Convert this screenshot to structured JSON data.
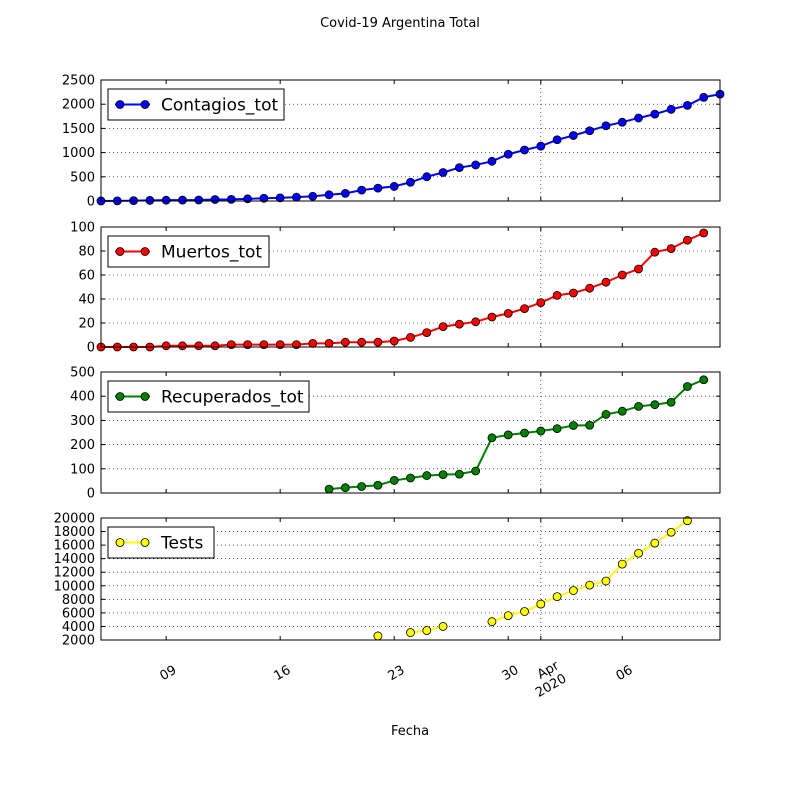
{
  "chart_data": {
    "type": "line",
    "title": "Covid-19 Argentina Total",
    "xlabel": "Fecha",
    "x_range": [
      "2020-03-05",
      "2020-04-12"
    ],
    "x_ticks": [
      {
        "date": "2020-03-09",
        "label": "09",
        "label2": ""
      },
      {
        "date": "2020-03-16",
        "label": "16",
        "label2": ""
      },
      {
        "date": "2020-03-23",
        "label": "23",
        "label2": ""
      },
      {
        "date": "2020-03-30",
        "label": "30",
        "label2": ""
      },
      {
        "date": "2020-04-01",
        "label": "Apr",
        "label2": "2020"
      },
      {
        "date": "2020-04-06",
        "label": "06",
        "label2": ""
      }
    ],
    "vgrid_dates": [
      "2020-04-01"
    ],
    "panels": [
      {
        "name": "Contagios_tot",
        "color": "#0000ff",
        "ylim": [
          0,
          2500
        ],
        "yticks": [
          0,
          500,
          1000,
          1500,
          2000,
          2500
        ],
        "start": "2020-03-05",
        "values": [
          1,
          2,
          8,
          12,
          17,
          19,
          21,
          31,
          34,
          45,
          56,
          65,
          79,
          97,
          128,
          158,
          225,
          266,
          301,
          387,
          502,
          589,
          690,
          745,
          820,
          966,
          1054,
          1133,
          1265,
          1353,
          1451,
          1554,
          1628,
          1715,
          1795,
          1894,
          1975,
          2142,
          2208
        ]
      },
      {
        "name": "Muertos_tot",
        "color": "#ff0000",
        "ylim": [
          0,
          100
        ],
        "yticks": [
          0,
          20,
          40,
          60,
          80,
          100
        ],
        "start": "2020-03-05",
        "values": [
          0,
          0,
          0,
          0,
          1,
          1,
          1,
          1,
          2,
          2,
          2,
          2,
          2,
          3,
          3,
          4,
          4,
          4,
          5,
          8,
          12,
          17,
          19,
          21,
          25,
          28,
          32,
          37,
          43,
          45,
          49,
          54,
          60,
          65,
          79,
          82,
          89,
          95
        ]
      },
      {
        "name": "Recuperados_tot",
        "color": "#008000",
        "ylim": [
          0,
          500
        ],
        "yticks": [
          0,
          100,
          200,
          300,
          400,
          500
        ],
        "start": "2020-03-19",
        "values": [
          16,
          22,
          27,
          32,
          52,
          62,
          72,
          76,
          78,
          91,
          228,
          240,
          248,
          256,
          266,
          279,
          280,
          325,
          338,
          358,
          365,
          375,
          440,
          468
        ]
      },
      {
        "name": "Tests",
        "color": "#ffff00",
        "ylim": [
          2000,
          20000
        ],
        "yticks": [
          2000,
          4000,
          6000,
          8000,
          10000,
          12000,
          14000,
          16000,
          18000,
          20000
        ],
        "start": "2020-03-22",
        "values": [
          2600,
          null,
          3100,
          3400,
          4000,
          null,
          null,
          4700,
          5600,
          6200,
          7300,
          8400,
          9300,
          10100,
          10700,
          13200,
          14800,
          16300,
          17900,
          19600
        ]
      }
    ]
  }
}
